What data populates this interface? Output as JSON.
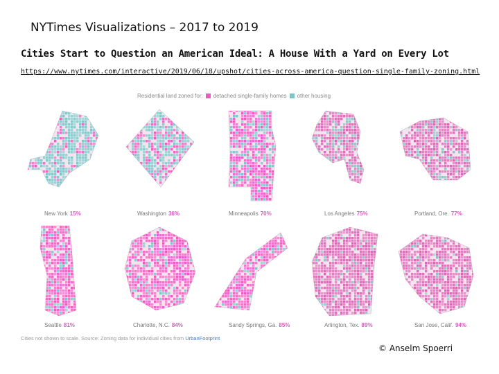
{
  "slide": {
    "title": "NYTimes Visualizations – 2017 to 2019",
    "article_title": "Cities Start to Question an American Ideal: A House With a Yard on Every Lot",
    "article_url": "https://www.nytimes.com/interactive/2019/06/18/upshot/cities-across-america-question-single-family-zoning.html",
    "copyright": "© Anselm Spoerri"
  },
  "legend": {
    "prefix": "Residential land zoned for:",
    "items": [
      {
        "label": "detached single-family homes",
        "color": "#e65cc0"
      },
      {
        "label": "other housing",
        "color": "#7fc3c8"
      }
    ]
  },
  "cities": [
    {
      "name": "New York",
      "percent": "15%",
      "share": 0.15
    },
    {
      "name": "Washington",
      "percent": "36%",
      "share": 0.36
    },
    {
      "name": "Minneapolis",
      "percent": "70%",
      "share": 0.7
    },
    {
      "name": "Los Angeles",
      "percent": "75%",
      "share": 0.75
    },
    {
      "name": "Portland, Ore.",
      "percent": "77%",
      "share": 0.77
    },
    {
      "name": "Seattle",
      "percent": "81%",
      "share": 0.81
    },
    {
      "name": "Charlotte, N.C.",
      "percent": "84%",
      "share": 0.84
    },
    {
      "name": "Sandy Springs, Ga.",
      "percent": "85%",
      "share": 0.85
    },
    {
      "name": "Arlington, Tex.",
      "percent": "89%",
      "share": 0.89
    },
    {
      "name": "San Jose, Calif.",
      "percent": "94%",
      "share": 0.94
    }
  ],
  "source": {
    "text": "Cities not shown to scale.  Source: Zoning data for individual cities from",
    "link": "UrbanFootprint"
  },
  "colors": {
    "single_family": "#e65cc0",
    "other_housing": "#7fc3c8",
    "background_land": "#f1e6ee",
    "water": "#ffffff"
  }
}
